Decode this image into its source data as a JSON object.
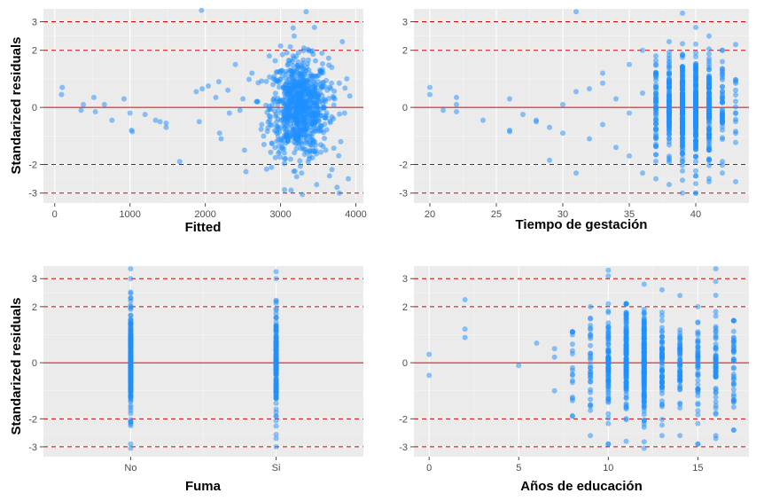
{
  "chart_data": [
    {
      "id": "fitted",
      "type": "scatter",
      "xlabel": "Fitted",
      "ylabel": "Standarized residuals",
      "xlim": [
        -150,
        4100
      ],
      "ylim": [
        -3.35,
        3.45
      ],
      "xticks": [
        0,
        1000,
        2000,
        3000,
        4000
      ],
      "xtick_labels": [
        "0",
        "1000",
        "2000",
        "3000",
        "4000"
      ],
      "yticks": [
        -3,
        -2,
        0,
        2,
        3
      ],
      "ytick_labels": [
        "-3",
        "-2",
        "0",
        "2",
        "3"
      ],
      "hlines": [
        {
          "y": 0,
          "color": "#cc0000",
          "style": "solid"
        },
        {
          "y": 2,
          "color": "#cc0000",
          "style": "dashed"
        },
        {
          "y": -2,
          "color": "#cc0000",
          "style": "dashed"
        },
        {
          "y": 3,
          "color": "#cc0000",
          "style": "dashed"
        },
        {
          "y": -3,
          "color": "#cc0000",
          "style": "dashed"
        }
      ],
      "point_color": "#1e90ff",
      "points": [
        [
          100,
          0.7
        ],
        [
          90,
          0.45
        ],
        [
          380,
          0.1
        ],
        [
          350,
          -0.1
        ],
        [
          520,
          0.35
        ],
        [
          540,
          -0.15
        ],
        [
          660,
          0.1
        ],
        [
          760,
          -0.45
        ],
        [
          920,
          0.3
        ],
        [
          1000,
          -0.2
        ],
        [
          1020,
          -0.8
        ],
        [
          1030,
          -0.85
        ],
        [
          1200,
          -0.25
        ],
        [
          1340,
          -0.45
        ],
        [
          1400,
          -0.5
        ],
        [
          1480,
          -0.7
        ],
        [
          1480,
          -0.55
        ],
        [
          1660,
          -1.9
        ],
        [
          1880,
          0.55
        ],
        [
          1960,
          0.65
        ],
        [
          1920,
          -0.5
        ],
        [
          2040,
          0.75
        ],
        [
          2140,
          0.35
        ],
        [
          2180,
          0.9
        ],
        [
          2190,
          -0.9
        ],
        [
          2210,
          -1.1
        ],
        [
          2300,
          0.6
        ],
        [
          2320,
          -0.2
        ],
        [
          2400,
          1.5
        ],
        [
          2460,
          -0.1
        ],
        [
          2500,
          0.3
        ],
        [
          2520,
          -1.5
        ],
        [
          1950,
          3.4
        ],
        [
          2540,
          -2.25
        ],
        [
          2620,
          1.2
        ],
        [
          2680,
          0.2
        ],
        [
          2750,
          -0.6
        ],
        [
          2780,
          -1.3
        ],
        [
          2850,
          1.8
        ],
        [
          2880,
          -2.1
        ],
        [
          2900,
          0.8
        ],
        [
          2950,
          -0.9
        ],
        [
          2960,
          0.1
        ],
        [
          3000,
          2.15
        ],
        [
          3050,
          -1.6
        ],
        [
          3100,
          0.45
        ],
        [
          3120,
          1.3
        ],
        [
          3150,
          -0.3
        ],
        [
          3180,
          2.5
        ],
        [
          3200,
          -1.1
        ],
        [
          3250,
          0.7
        ],
        [
          3280,
          -2.3
        ],
        [
          3300,
          1.55
        ],
        [
          3320,
          -0.55
        ],
        [
          3340,
          3.35
        ],
        [
          3360,
          0.2
        ],
        [
          3380,
          -1.8
        ],
        [
          3400,
          1.1
        ],
        [
          3420,
          -0.1
        ],
        [
          3450,
          2.8
        ],
        [
          3480,
          -2.7
        ],
        [
          3500,
          0.9
        ],
        [
          3520,
          -0.8
        ],
        [
          3550,
          1.9
        ],
        [
          3580,
          0.0
        ],
        [
          3600,
          -1.5
        ],
        [
          3620,
          0.6
        ],
        [
          3650,
          -2.4
        ],
        [
          3680,
          1.4
        ],
        [
          3700,
          -0.4
        ],
        [
          3720,
          0.3
        ],
        [
          3750,
          -2.8
        ],
        [
          3780,
          0.85
        ],
        [
          3800,
          -1.2
        ],
        [
          3820,
          2.3
        ],
        [
          3850,
          -0.2
        ],
        [
          3880,
          1.0
        ],
        [
          3900,
          -2.5
        ],
        [
          3920,
          0.4
        ],
        [
          3780,
          -3.0
        ],
        [
          3290,
          -3.05
        ]
      ],
      "notes_series": {
        "x_center": 3250,
        "x_spread": 320,
        "count": 800
      }
    },
    {
      "id": "gestacion",
      "type": "scatter",
      "xlabel": "Tiempo de gestación",
      "ylabel": "",
      "xlim": [
        18.8,
        44.0
      ],
      "ylim": [
        -3.35,
        3.45
      ],
      "xticks": [
        20,
        25,
        30,
        35,
        40
      ],
      "xtick_labels": [
        "20",
        "25",
        "30",
        "35",
        "40"
      ],
      "yticks": [
        -3,
        -2,
        0,
        2,
        3
      ],
      "ytick_labels": [
        "-3",
        "-2",
        "0",
        "2",
        "3"
      ],
      "hlines": [
        {
          "y": 0,
          "color": "#cc0000",
          "style": "solid"
        },
        {
          "y": 2,
          "color": "#cc0000",
          "style": "dashed"
        },
        {
          "y": -2,
          "color": "#cc0000",
          "style": "dashed"
        },
        {
          "y": 3,
          "color": "#cc0000",
          "style": "dashed"
        },
        {
          "y": -3,
          "color": "#cc0000",
          "style": "dashed"
        }
      ],
      "point_color": "#1e90ff",
      "points": [
        [
          20,
          0.7
        ],
        [
          20,
          0.45
        ],
        [
          21,
          -0.1
        ],
        [
          22,
          0.35
        ],
        [
          22,
          0.1
        ],
        [
          22,
          -0.15
        ],
        [
          24,
          -0.45
        ],
        [
          26,
          0.3
        ],
        [
          26,
          -0.8
        ],
        [
          26,
          -0.85
        ],
        [
          27,
          -0.25
        ],
        [
          28,
          -0.45
        ],
        [
          28,
          -0.5
        ],
        [
          29,
          -1.85
        ],
        [
          29,
          -0.7
        ],
        [
          30,
          0.1
        ],
        [
          30,
          -0.9
        ],
        [
          31,
          3.35
        ],
        [
          31,
          0.55
        ],
        [
          31,
          -2.3
        ],
        [
          32,
          0.65
        ],
        [
          32,
          -1.1
        ],
        [
          33,
          0.85
        ],
        [
          33,
          -0.6
        ],
        [
          33,
          1.2
        ],
        [
          34,
          0.3
        ],
        [
          34,
          -1.4
        ],
        [
          35,
          1.5
        ],
        [
          35,
          -0.2
        ],
        [
          35,
          -1.7
        ],
        [
          36,
          2.0
        ],
        [
          36,
          -2.3
        ],
        [
          36,
          0.5
        ]
      ],
      "strips": [
        {
          "x": 37,
          "count": 60,
          "lo": -2.5,
          "hi": 1.8
        },
        {
          "x": 38,
          "count": 120,
          "lo": -2.7,
          "hi": 2.3
        },
        {
          "x": 39,
          "count": 200,
          "lo": -3.0,
          "hi": 3.3
        },
        {
          "x": 40,
          "count": 200,
          "lo": -3.0,
          "hi": 2.8
        },
        {
          "x": 41,
          "count": 120,
          "lo": -2.6,
          "hi": 2.5
        },
        {
          "x": 42,
          "count": 50,
          "lo": -2.3,
          "hi": 2.0
        },
        {
          "x": 43,
          "count": 15,
          "lo": -2.6,
          "hi": 2.2
        }
      ]
    },
    {
      "id": "fuma",
      "type": "scatter",
      "xlabel": "Fuma",
      "ylabel": "Standarized residuals",
      "xlim": [
        0.4,
        2.6
      ],
      "ylim": [
        -3.35,
        3.45
      ],
      "xticks": [
        1,
        2
      ],
      "xtick_labels": [
        "No",
        "Si"
      ],
      "yticks": [
        -3,
        -2,
        0,
        2,
        3
      ],
      "ytick_labels": [
        "-3",
        "-2",
        "0",
        "2",
        "3"
      ],
      "hlines": [
        {
          "y": 0,
          "color": "#cc0000",
          "style": "solid"
        },
        {
          "y": 2,
          "color": "#cc0000",
          "style": "dashed"
        },
        {
          "y": -2,
          "color": "#cc0000",
          "style": "dashed"
        },
        {
          "y": 3,
          "color": "#cc0000",
          "style": "dashed"
        },
        {
          "y": -3,
          "color": "#cc0000",
          "style": "dashed"
        }
      ],
      "point_color": "#1e90ff",
      "points": [
        [
          1,
          3.35
        ],
        [
          1,
          -3.05
        ],
        [
          2,
          3.25
        ],
        [
          2,
          -3.0
        ]
      ],
      "strips": [
        {
          "x": 1,
          "count": 300,
          "lo": -2.9,
          "hi": 3.0
        },
        {
          "x": 2,
          "count": 180,
          "lo": -2.7,
          "hi": 3.0
        }
      ]
    },
    {
      "id": "educacion",
      "type": "scatter",
      "xlabel": "Años de educación",
      "ylabel": "",
      "xlim": [
        -0.85,
        17.85
      ],
      "ylim": [
        -3.35,
        3.45
      ],
      "xticks": [
        0,
        5,
        10,
        15
      ],
      "xtick_labels": [
        "0",
        "5",
        "10",
        "15"
      ],
      "yticks": [
        -3,
        -2,
        0,
        2,
        3
      ],
      "ytick_labels": [
        "-3",
        "-2",
        "0",
        "2",
        "3"
      ],
      "hlines": [
        {
          "y": 0,
          "color": "#cc0000",
          "style": "solid"
        },
        {
          "y": 2,
          "color": "#cc0000",
          "style": "dashed"
        },
        {
          "y": -2,
          "color": "#cc0000",
          "style": "dashed"
        },
        {
          "y": 3,
          "color": "#cc0000",
          "style": "dashed"
        },
        {
          "y": -3,
          "color": "#cc0000",
          "style": "dashed"
        }
      ],
      "point_color": "#1e90ff",
      "points": [
        [
          0,
          0.3
        ],
        [
          0,
          -0.45
        ],
        [
          2,
          2.25
        ],
        [
          2,
          1.2
        ],
        [
          2,
          0.9
        ],
        [
          5,
          -0.1
        ],
        [
          6,
          0.7
        ],
        [
          7,
          0.5
        ],
        [
          7,
          -1.0
        ],
        [
          7,
          0.2
        ],
        [
          8,
          1.0
        ],
        [
          8,
          -1.9
        ],
        [
          9,
          1.0
        ],
        [
          9,
          -1.5
        ],
        [
          9,
          -1.7
        ],
        [
          10,
          3.3
        ],
        [
          10,
          3.1
        ],
        [
          10,
          -2.9
        ],
        [
          11,
          2.1
        ],
        [
          12,
          -2.3
        ],
        [
          15,
          -2.9
        ],
        [
          16,
          3.35
        ],
        [
          16,
          -2.7
        ]
      ],
      "strips": [
        {
          "x": 8,
          "count": 15,
          "lo": -1.9,
          "hi": 1.1
        },
        {
          "x": 9,
          "count": 30,
          "lo": -2.6,
          "hi": 2.0
        },
        {
          "x": 10,
          "count": 90,
          "lo": -2.9,
          "hi": 2.1
        },
        {
          "x": 11,
          "count": 140,
          "lo": -2.8,
          "hi": 2.1
        },
        {
          "x": 12,
          "count": 220,
          "lo": -3.05,
          "hi": 2.8
        },
        {
          "x": 13,
          "count": 70,
          "lo": -2.6,
          "hi": 2.6
        },
        {
          "x": 14,
          "count": 60,
          "lo": -2.6,
          "hi": 2.4
        },
        {
          "x": 15,
          "count": 50,
          "lo": -2.9,
          "hi": 2.0
        },
        {
          "x": 16,
          "count": 60,
          "lo": -2.6,
          "hi": 2.9
        },
        {
          "x": 17,
          "count": 40,
          "lo": -2.4,
          "hi": 1.5
        }
      ]
    }
  ]
}
